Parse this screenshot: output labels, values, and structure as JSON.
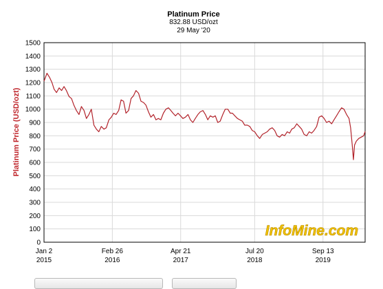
{
  "chart_data": {
    "type": "line",
    "title": "Platinum Price",
    "subtitle_price": "832.88 USD/ozt",
    "subtitle_date": "29 May '20",
    "ylabel": "Platinum Price (USD/ozt)",
    "xlabel": "",
    "ylim": [
      0,
      1500
    ],
    "yticks": [
      0,
      100,
      200,
      300,
      400,
      500,
      600,
      700,
      800,
      900,
      1000,
      1100,
      1200,
      1300,
      1400,
      1500
    ],
    "x_range": [
      "2015-01-02",
      "2020-05-29"
    ],
    "xticks": [
      {
        "date": "2015-01-02",
        "line1": "Jan 2",
        "line2": "2015"
      },
      {
        "date": "2016-02-26",
        "line1": "Feb 26",
        "line2": "2016"
      },
      {
        "date": "2017-04-21",
        "line1": "Apr 21",
        "line2": "2017"
      },
      {
        "date": "2018-07-20",
        "line1": "Jul 20",
        "line2": "2018"
      },
      {
        "date": "2019-09-13",
        "line1": "Sep 13",
        "line2": "2019"
      }
    ],
    "grid": true,
    "line_color": "#b2222a",
    "series": [
      {
        "x": [
          "2015-01-02",
          "2015-01-20",
          "2015-02-05",
          "2015-02-20",
          "2015-03-05",
          "2015-03-20",
          "2015-04-05",
          "2015-04-20",
          "2015-05-05",
          "2015-05-20",
          "2015-06-05",
          "2015-06-20",
          "2015-07-05",
          "2015-07-20",
          "2015-08-05",
          "2015-08-20",
          "2015-09-05",
          "2015-09-20",
          "2015-10-05",
          "2015-10-20",
          "2015-11-05",
          "2015-11-20",
          "2015-12-05",
          "2015-12-20",
          "2016-01-05",
          "2016-01-20",
          "2016-02-05",
          "2016-02-20",
          "2016-03-05",
          "2016-03-20",
          "2016-04-05",
          "2016-04-20",
          "2016-05-05",
          "2016-05-20",
          "2016-06-05",
          "2016-06-20",
          "2016-07-05",
          "2016-07-20",
          "2016-08-05",
          "2016-08-20",
          "2016-09-05",
          "2016-09-20",
          "2016-10-05",
          "2016-10-20",
          "2016-11-05",
          "2016-11-20",
          "2016-12-05",
          "2016-12-20",
          "2017-01-05",
          "2017-01-20",
          "2017-02-05",
          "2017-02-20",
          "2017-03-05",
          "2017-03-20",
          "2017-04-05",
          "2017-04-20",
          "2017-05-05",
          "2017-05-20",
          "2017-06-05",
          "2017-06-20",
          "2017-07-05",
          "2017-07-20",
          "2017-08-05",
          "2017-08-20",
          "2017-09-05",
          "2017-09-20",
          "2017-10-05",
          "2017-10-20",
          "2017-11-05",
          "2017-11-20",
          "2017-12-05",
          "2017-12-20",
          "2018-01-05",
          "2018-01-20",
          "2018-02-05",
          "2018-02-20",
          "2018-03-05",
          "2018-03-20",
          "2018-04-05",
          "2018-04-20",
          "2018-05-05",
          "2018-05-20",
          "2018-06-05",
          "2018-06-20",
          "2018-07-05",
          "2018-07-20",
          "2018-08-05",
          "2018-08-20",
          "2018-09-05",
          "2018-09-20",
          "2018-10-05",
          "2018-10-20",
          "2018-11-05",
          "2018-11-20",
          "2018-12-05",
          "2018-12-20",
          "2019-01-05",
          "2019-01-20",
          "2019-02-05",
          "2019-02-20",
          "2019-03-05",
          "2019-03-20",
          "2019-04-05",
          "2019-04-20",
          "2019-05-05",
          "2019-05-20",
          "2019-06-05",
          "2019-06-20",
          "2019-07-05",
          "2019-07-20",
          "2019-08-05",
          "2019-08-20",
          "2019-09-05",
          "2019-09-20",
          "2019-10-05",
          "2019-10-20",
          "2019-11-05",
          "2019-11-20",
          "2019-12-05",
          "2019-12-20",
          "2020-01-05",
          "2020-01-20",
          "2020-02-05",
          "2020-02-20",
          "2020-03-01",
          "2020-03-10",
          "2020-03-18",
          "2020-03-25",
          "2020-04-05",
          "2020-04-20",
          "2020-05-05",
          "2020-05-20",
          "2020-05-29"
        ],
        "values": [
          1210,
          1270,
          1240,
          1200,
          1150,
          1125,
          1160,
          1140,
          1170,
          1140,
          1095,
          1080,
          1030,
          990,
          960,
          1020,
          990,
          930,
          960,
          1000,
          880,
          850,
          830,
          870,
          850,
          860,
          920,
          940,
          970,
          960,
          990,
          1070,
          1060,
          970,
          990,
          1080,
          1100,
          1140,
          1120,
          1060,
          1050,
          1030,
          980,
          940,
          960,
          920,
          930,
          920,
          970,
          1000,
          1010,
          990,
          970,
          950,
          970,
          950,
          930,
          940,
          960,
          920,
          900,
          930,
          960,
          980,
          990,
          960,
          920,
          950,
          940,
          950,
          900,
          910,
          960,
          1000,
          1000,
          970,
          970,
          950,
          930,
          920,
          910,
          880,
          880,
          870,
          840,
          830,
          800,
          780,
          810,
          820,
          830,
          850,
          860,
          840,
          800,
          790,
          810,
          800,
          830,
          820,
          850,
          860,
          890,
          870,
          850,
          810,
          800,
          830,
          820,
          840,
          870,
          940,
          950,
          930,
          900,
          910,
          890,
          920,
          950,
          980,
          1010,
          1000,
          960,
          930,
          860,
          740,
          620,
          730,
          760,
          780,
          790,
          800,
          833
        ],
        "name": ""
      }
    ]
  },
  "watermark": "InfoMine.com"
}
